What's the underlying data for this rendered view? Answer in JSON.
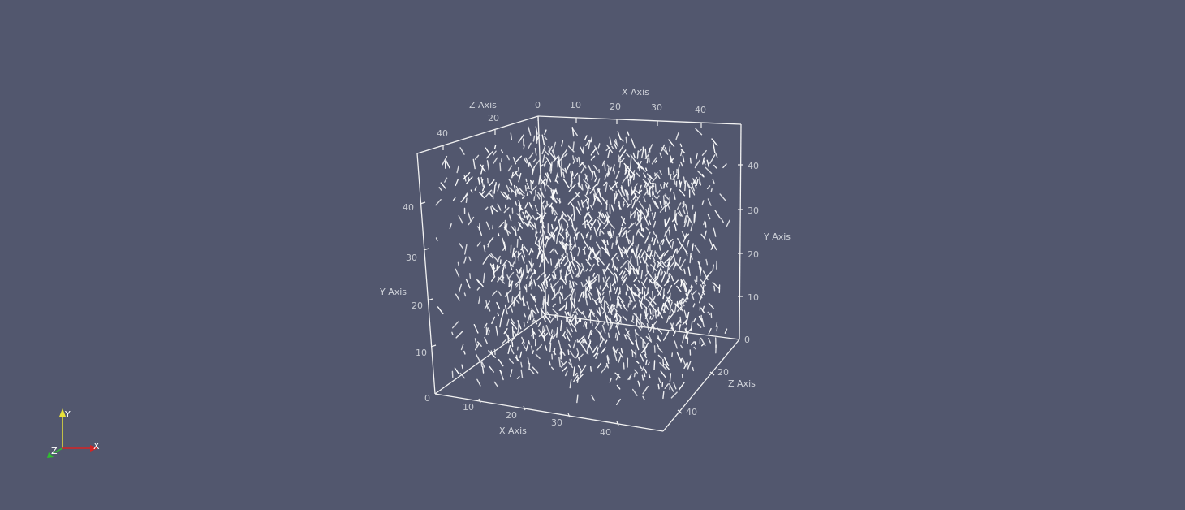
{
  "viewport": {
    "background": "#52576e",
    "box_color": "#f2f2f2",
    "glyph_color": "#ffffff",
    "label_color": "#c8cbd2"
  },
  "axes": {
    "x_title": "X Axis",
    "y_title": "Y Axis",
    "z_title": "Z Axis",
    "x_ticks_front": [
      "0",
      "10",
      "20",
      "30",
      "40"
    ],
    "x_ticks_back": [
      "0",
      "10",
      "20",
      "30",
      "40"
    ],
    "y_ticks_left": [
      "0",
      "10",
      "20",
      "30",
      "40"
    ],
    "y_ticks_right": [
      "0",
      "10",
      "20",
      "30",
      "40"
    ],
    "z_ticks_top": [
      "20",
      "40"
    ],
    "z_ticks_bottom": [
      "20",
      "40"
    ]
  },
  "orientation": {
    "x_label": "X",
    "y_label": "Y",
    "z_label": "Z",
    "x_color": "#d42424",
    "y_color": "#e8e23a",
    "z_color": "#2fbf2f"
  }
}
